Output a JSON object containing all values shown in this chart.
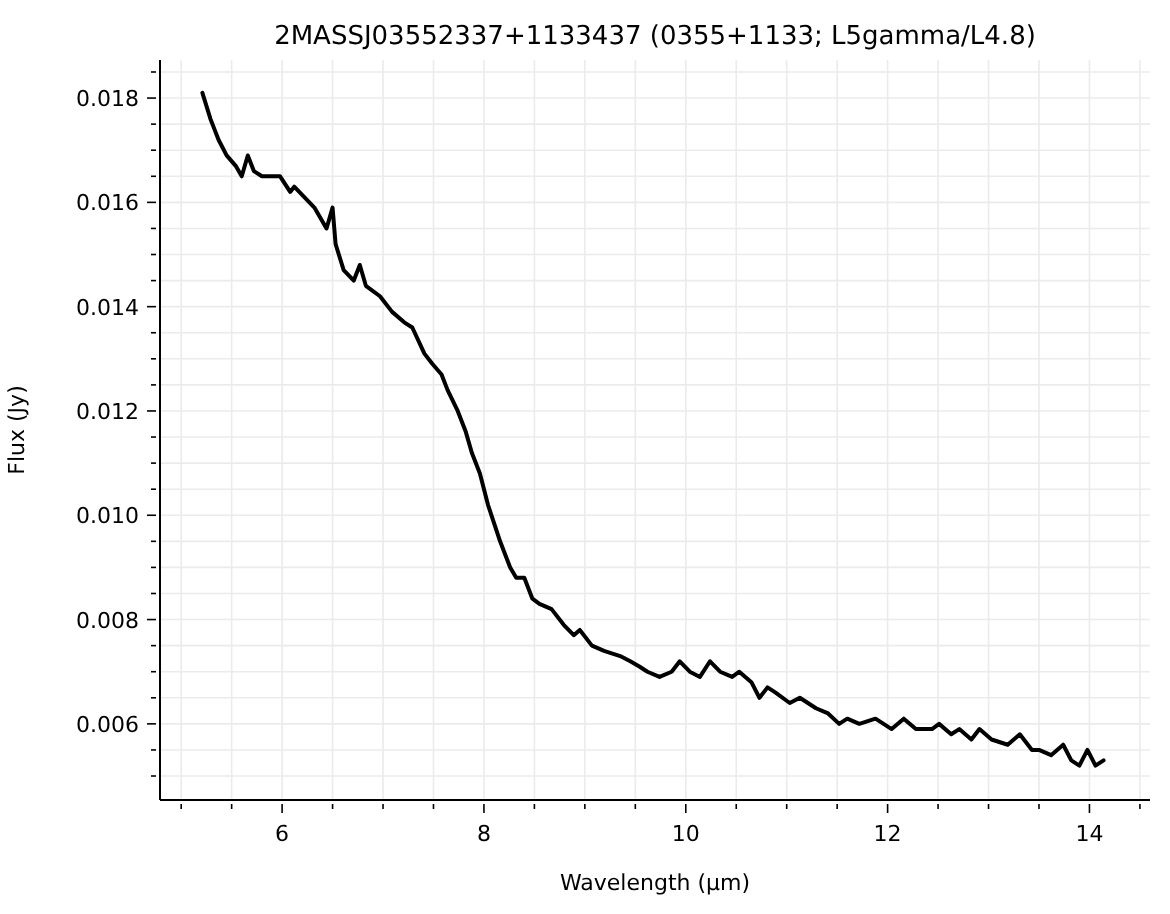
{
  "chart_data": {
    "type": "line",
    "title": "2MASSJ03552337+1133437 (0355+1133; L5gamma/L4.8)",
    "xlabel": "Wavelength (μm)",
    "ylabel": "Flux (Jy)",
    "series": [
      {
        "color": "#000000",
        "line_style": "solid",
        "x": [
          5.21,
          5.29,
          5.33,
          5.37,
          5.45,
          5.54,
          5.6,
          5.66,
          5.72,
          5.8,
          5.88,
          5.98,
          6.08,
          6.12,
          6.22,
          6.32,
          6.38,
          6.44,
          6.5,
          6.53,
          6.61,
          6.71,
          6.77,
          6.83,
          6.97,
          7.09,
          7.21,
          7.29,
          7.41,
          7.49,
          7.58,
          7.64,
          7.74,
          7.82,
          7.88,
          7.96,
          8.04,
          8.16,
          8.26,
          8.32,
          8.4,
          8.48,
          8.55,
          8.67,
          8.79,
          8.89,
          8.95,
          9.07,
          9.19,
          9.35,
          9.45,
          9.54,
          9.62,
          9.74,
          9.86,
          9.94,
          10.04,
          10.14,
          10.24,
          10.34,
          10.46,
          10.53,
          10.65,
          10.73,
          10.81,
          10.89,
          11.03,
          11.13,
          11.29,
          11.41,
          11.52,
          11.6,
          11.72,
          11.88,
          12.04,
          12.16,
          12.28,
          12.44,
          12.51,
          12.63,
          12.71,
          12.83,
          12.91,
          13.03,
          13.19,
          13.31,
          13.43,
          13.5,
          13.62,
          13.74,
          13.82,
          13.9,
          13.98,
          14.06,
          14.14
        ],
        "values": [
          0.0181,
          0.0176,
          0.0174,
          0.0172,
          0.0169,
          0.0167,
          0.0165,
          0.0169,
          0.0166,
          0.0165,
          0.0165,
          0.0165,
          0.0162,
          0.0163,
          0.0161,
          0.0159,
          0.0157,
          0.0155,
          0.0159,
          0.0152,
          0.0147,
          0.0145,
          0.0148,
          0.0144,
          0.0142,
          0.0139,
          0.0137,
          0.0136,
          0.0131,
          0.0129,
          0.0127,
          0.0124,
          0.012,
          0.0116,
          0.0112,
          0.0108,
          0.0102,
          0.0095,
          0.009,
          0.0088,
          0.0088,
          0.0084,
          0.0083,
          0.0082,
          0.0079,
          0.0077,
          0.0078,
          0.0075,
          0.0074,
          0.0073,
          0.0072,
          0.0071,
          0.007,
          0.0069,
          0.007,
          0.0072,
          0.007,
          0.0069,
          0.0072,
          0.007,
          0.0069,
          0.007,
          0.0068,
          0.0065,
          0.0067,
          0.0066,
          0.0064,
          0.0065,
          0.0063,
          0.0062,
          0.006,
          0.0061,
          0.006,
          0.0061,
          0.0059,
          0.0061,
          0.0059,
          0.0059,
          0.006,
          0.0058,
          0.0059,
          0.0057,
          0.0059,
          0.0057,
          0.0056,
          0.0058,
          0.0055,
          0.0055,
          0.0054,
          0.0056,
          0.0053,
          0.0052,
          0.0055,
          0.0052,
          0.0053
        ]
      }
    ],
    "xlim": [
      4.79,
      14.6
    ],
    "xticks": [
      {
        "value": 5,
        "label": null
      },
      {
        "value": 5.5,
        "label": null
      },
      {
        "value": 6,
        "label": "6"
      },
      {
        "value": 6.5,
        "label": null
      },
      {
        "value": 7,
        "label": null
      },
      {
        "value": 7.5,
        "label": null
      },
      {
        "value": 8,
        "label": "8"
      },
      {
        "value": 8.5,
        "label": null
      },
      {
        "value": 9,
        "label": null
      },
      {
        "value": 9.5,
        "label": null
      },
      {
        "value": 10,
        "label": "10"
      },
      {
        "value": 10.5,
        "label": null
      },
      {
        "value": 11,
        "label": null
      },
      {
        "value": 11.5,
        "label": null
      },
      {
        "value": 12,
        "label": "12"
      },
      {
        "value": 12.5,
        "label": null
      },
      {
        "value": 13,
        "label": null
      },
      {
        "value": 13.5,
        "label": null
      },
      {
        "value": 14,
        "label": "14"
      },
      {
        "value": 14.5,
        "label": null
      }
    ],
    "ylim": [
      0.00454,
      0.01873
    ],
    "yticks": [
      {
        "value": 0.005,
        "label": null
      },
      {
        "value": 0.0055,
        "label": null
      },
      {
        "value": 0.006,
        "label": "0.006"
      },
      {
        "value": 0.0065,
        "label": null
      },
      {
        "value": 0.007,
        "label": null
      },
      {
        "value": 0.0075,
        "label": null
      },
      {
        "value": 0.008,
        "label": "0.008"
      },
      {
        "value": 0.0085,
        "label": null
      },
      {
        "value": 0.009,
        "label": null
      },
      {
        "value": 0.0095,
        "label": null
      },
      {
        "value": 0.01,
        "label": "0.010"
      },
      {
        "value": 0.0105,
        "label": null
      },
      {
        "value": 0.011,
        "label": null
      },
      {
        "value": 0.0115,
        "label": null
      },
      {
        "value": 0.012,
        "label": "0.012"
      },
      {
        "value": 0.0125,
        "label": null
      },
      {
        "value": 0.013,
        "label": null
      },
      {
        "value": 0.0135,
        "label": null
      },
      {
        "value": 0.014,
        "label": "0.014"
      },
      {
        "value": 0.0145,
        "label": null
      },
      {
        "value": 0.015,
        "label": null
      },
      {
        "value": 0.0155,
        "label": null
      },
      {
        "value": 0.016,
        "label": "0.016"
      },
      {
        "value": 0.0165,
        "label": null
      },
      {
        "value": 0.017,
        "label": null
      },
      {
        "value": 0.0175,
        "label": null
      },
      {
        "value": 0.018,
        "label": "0.018"
      },
      {
        "value": 0.0185,
        "label": null
      }
    ],
    "grid": true
  }
}
